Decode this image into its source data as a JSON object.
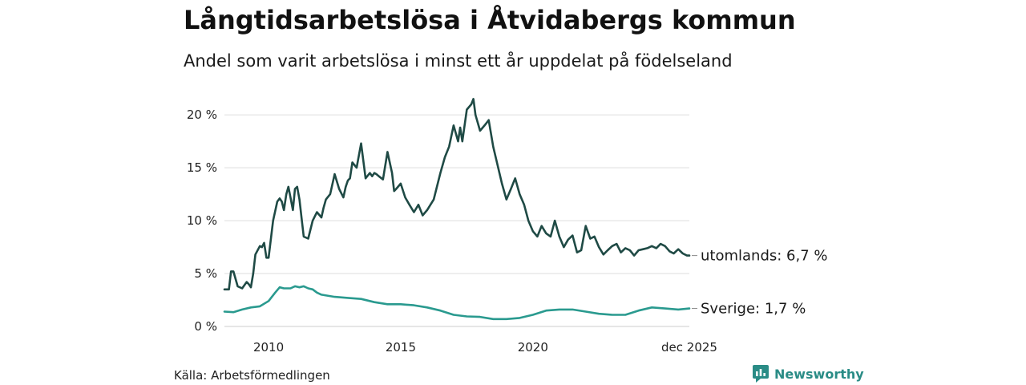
{
  "title": "Långtidsarbetslösa i Åtvidabergs kommun",
  "subtitle": "Andel som varit arbetslösa i minst ett år uppdelat på födelseland",
  "source": "Källa: Arbetsförmedlingen",
  "brand": "Newsworthy",
  "colors": {
    "utomlands": "#1f4a45",
    "sverige": "#2a9a8f",
    "grid": "#dddddd",
    "brand": "#2a8c86"
  },
  "chart_data": {
    "type": "line",
    "title": "Långtidsarbetslösa i Åtvidabergs kommun",
    "ylim": [
      0,
      21
    ],
    "xlim": [
      2008.33,
      2025.92
    ],
    "y_ticks": [
      0,
      5,
      10,
      15,
      20
    ],
    "y_tick_labels": [
      "0 %",
      "5 %",
      "10 %",
      "15 %",
      "20 %"
    ],
    "x_ticks": [
      2010,
      2015,
      2020,
      2025.92
    ],
    "x_tick_labels": [
      "2010",
      "2015",
      "2020",
      "dec 2025"
    ],
    "grid": true,
    "series": [
      {
        "name": "utomlands",
        "end_label": "utomlands: 6,7 %",
        "x": [
          2008.33,
          2008.5,
          2008.58,
          2008.67,
          2008.83,
          2009.0,
          2009.17,
          2009.25,
          2009.33,
          2009.42,
          2009.5,
          2009.67,
          2009.75,
          2009.83,
          2009.92,
          2010.0,
          2010.17,
          2010.33,
          2010.42,
          2010.5,
          2010.58,
          2010.67,
          2010.75,
          2010.83,
          2010.92,
          2011.0,
          2011.08,
          2011.17,
          2011.25,
          2011.33,
          2011.5,
          2011.67,
          2011.83,
          2012.0,
          2012.08,
          2012.17,
          2012.33,
          2012.5,
          2012.67,
          2012.83,
          2012.92,
          2013.0,
          2013.08,
          2013.17,
          2013.33,
          2013.5,
          2013.67,
          2013.83,
          2013.92,
          2014.0,
          2014.08,
          2014.17,
          2014.33,
          2014.5,
          2014.67,
          2014.75,
          2014.83,
          2015.0,
          2015.17,
          2015.33,
          2015.5,
          2015.67,
          2015.83,
          2016.0,
          2016.25,
          2016.5,
          2016.67,
          2016.83,
          2017.0,
          2017.17,
          2017.25,
          2017.33,
          2017.5,
          2017.67,
          2017.75,
          2017.83,
          2018.0,
          2018.17,
          2018.33,
          2018.5,
          2018.67,
          2018.83,
          2019.0,
          2019.17,
          2019.33,
          2019.5,
          2019.67,
          2019.83,
          2020.0,
          2020.17,
          2020.33,
          2020.5,
          2020.67,
          2020.83,
          2021.0,
          2021.17,
          2021.33,
          2021.5,
          2021.67,
          2021.83,
          2022.0,
          2022.17,
          2022.33,
          2022.5,
          2022.67,
          2022.83,
          2023.0,
          2023.17,
          2023.33,
          2023.5,
          2023.67,
          2023.83,
          2024.0,
          2024.17,
          2024.33,
          2024.5,
          2024.67,
          2024.83,
          2025.0,
          2025.17,
          2025.33,
          2025.5,
          2025.67,
          2025.83,
          2025.92
        ],
        "values": [
          3.5,
          3.5,
          5.2,
          5.2,
          3.8,
          3.6,
          4.2,
          4.0,
          3.7,
          5.0,
          6.8,
          7.6,
          7.5,
          7.9,
          6.5,
          6.5,
          10.0,
          11.8,
          12.1,
          11.8,
          11.0,
          12.5,
          13.2,
          12.2,
          11.0,
          13.0,
          13.2,
          12.0,
          10.2,
          8.5,
          8.3,
          10.0,
          10.8,
          10.3,
          11.2,
          12.0,
          12.5,
          14.4,
          13.0,
          12.2,
          13.2,
          13.8,
          14.0,
          15.5,
          15.0,
          17.3,
          14.0,
          14.5,
          14.2,
          14.5,
          14.4,
          14.2,
          13.9,
          16.5,
          14.5,
          12.8,
          13.0,
          13.5,
          12.2,
          11.5,
          10.8,
          11.5,
          10.5,
          11.0,
          12.0,
          14.5,
          16.0,
          17.0,
          19.0,
          17.5,
          18.8,
          17.5,
          20.5,
          21.0,
          21.5,
          20.0,
          18.5,
          19.0,
          19.5,
          17.0,
          15.2,
          13.5,
          12.0,
          13.0,
          14.0,
          12.5,
          11.5,
          10.0,
          9.0,
          8.5,
          9.5,
          8.8,
          8.5,
          10.0,
          8.5,
          7.5,
          8.2,
          8.6,
          7.0,
          7.2,
          9.5,
          8.3,
          8.5,
          7.5,
          6.8,
          7.2,
          7.6,
          7.8,
          7.0,
          7.4,
          7.2,
          6.7,
          7.2,
          7.3,
          7.4,
          7.6,
          7.4,
          7.8,
          7.6,
          7.1,
          6.9,
          7.3,
          6.9,
          6.7,
          6.7
        ]
      },
      {
        "name": "Sverige",
        "end_label": "Sverige: 1,7 %",
        "x": [
          2008.33,
          2008.67,
          2009.0,
          2009.33,
          2009.67,
          2010.0,
          2010.25,
          2010.42,
          2010.58,
          2010.83,
          2011.0,
          2011.17,
          2011.33,
          2011.5,
          2011.67,
          2011.83,
          2012.0,
          2012.5,
          2013.0,
          2013.5,
          2014.0,
          2014.5,
          2015.0,
          2015.5,
          2016.0,
          2016.5,
          2017.0,
          2017.5,
          2018.0,
          2018.5,
          2019.0,
          2019.5,
          2020.0,
          2020.5,
          2021.0,
          2021.5,
          2022.0,
          2022.5,
          2023.0,
          2023.5,
          2024.0,
          2024.5,
          2025.0,
          2025.5,
          2025.92
        ],
        "values": [
          1.4,
          1.35,
          1.6,
          1.8,
          1.9,
          2.4,
          3.2,
          3.7,
          3.6,
          3.6,
          3.8,
          3.7,
          3.8,
          3.6,
          3.5,
          3.2,
          3.0,
          2.8,
          2.7,
          2.6,
          2.3,
          2.1,
          2.1,
          2.0,
          1.8,
          1.5,
          1.1,
          0.95,
          0.9,
          0.7,
          0.7,
          0.8,
          1.1,
          1.5,
          1.6,
          1.6,
          1.4,
          1.2,
          1.1,
          1.1,
          1.5,
          1.8,
          1.7,
          1.6,
          1.7
        ]
      }
    ]
  }
}
